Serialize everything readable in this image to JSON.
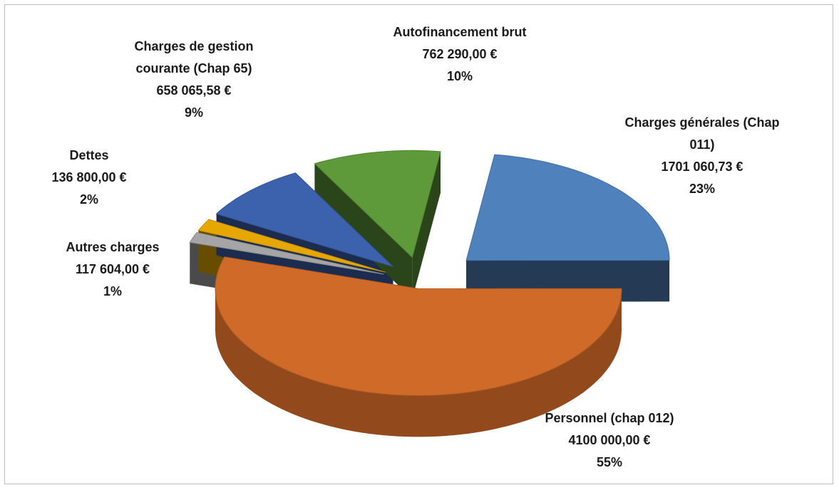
{
  "chart_data": {
    "type": "pie3d",
    "categories": [
      "Charges générales (Chap 011)",
      "Personnel (chap 012)",
      "Autres charges",
      "Dettes",
      "Charges de gestion courante (Chap 65)",
      "Autofinancement brut"
    ],
    "amounts": [
      1701060.73,
      4100000,
      117604,
      136800,
      658065.58,
      762290
    ],
    "amount_labels": [
      "1701 060,73 €",
      "4100 000,00 €",
      "117 604,00 €",
      "136 800,00 €",
      "658 065,58 €",
      "762 290,00 €"
    ],
    "values": [
      23,
      55,
      1,
      2,
      9,
      10
    ],
    "value_labels": [
      "23%",
      "55%",
      "1%",
      "2%",
      "9%",
      "10%"
    ],
    "colors": [
      "#4f81bd",
      "#d06a28",
      "#a5a5a5",
      "#e6a800",
      "#3c62ad",
      "#5e9a3a"
    ]
  }
}
